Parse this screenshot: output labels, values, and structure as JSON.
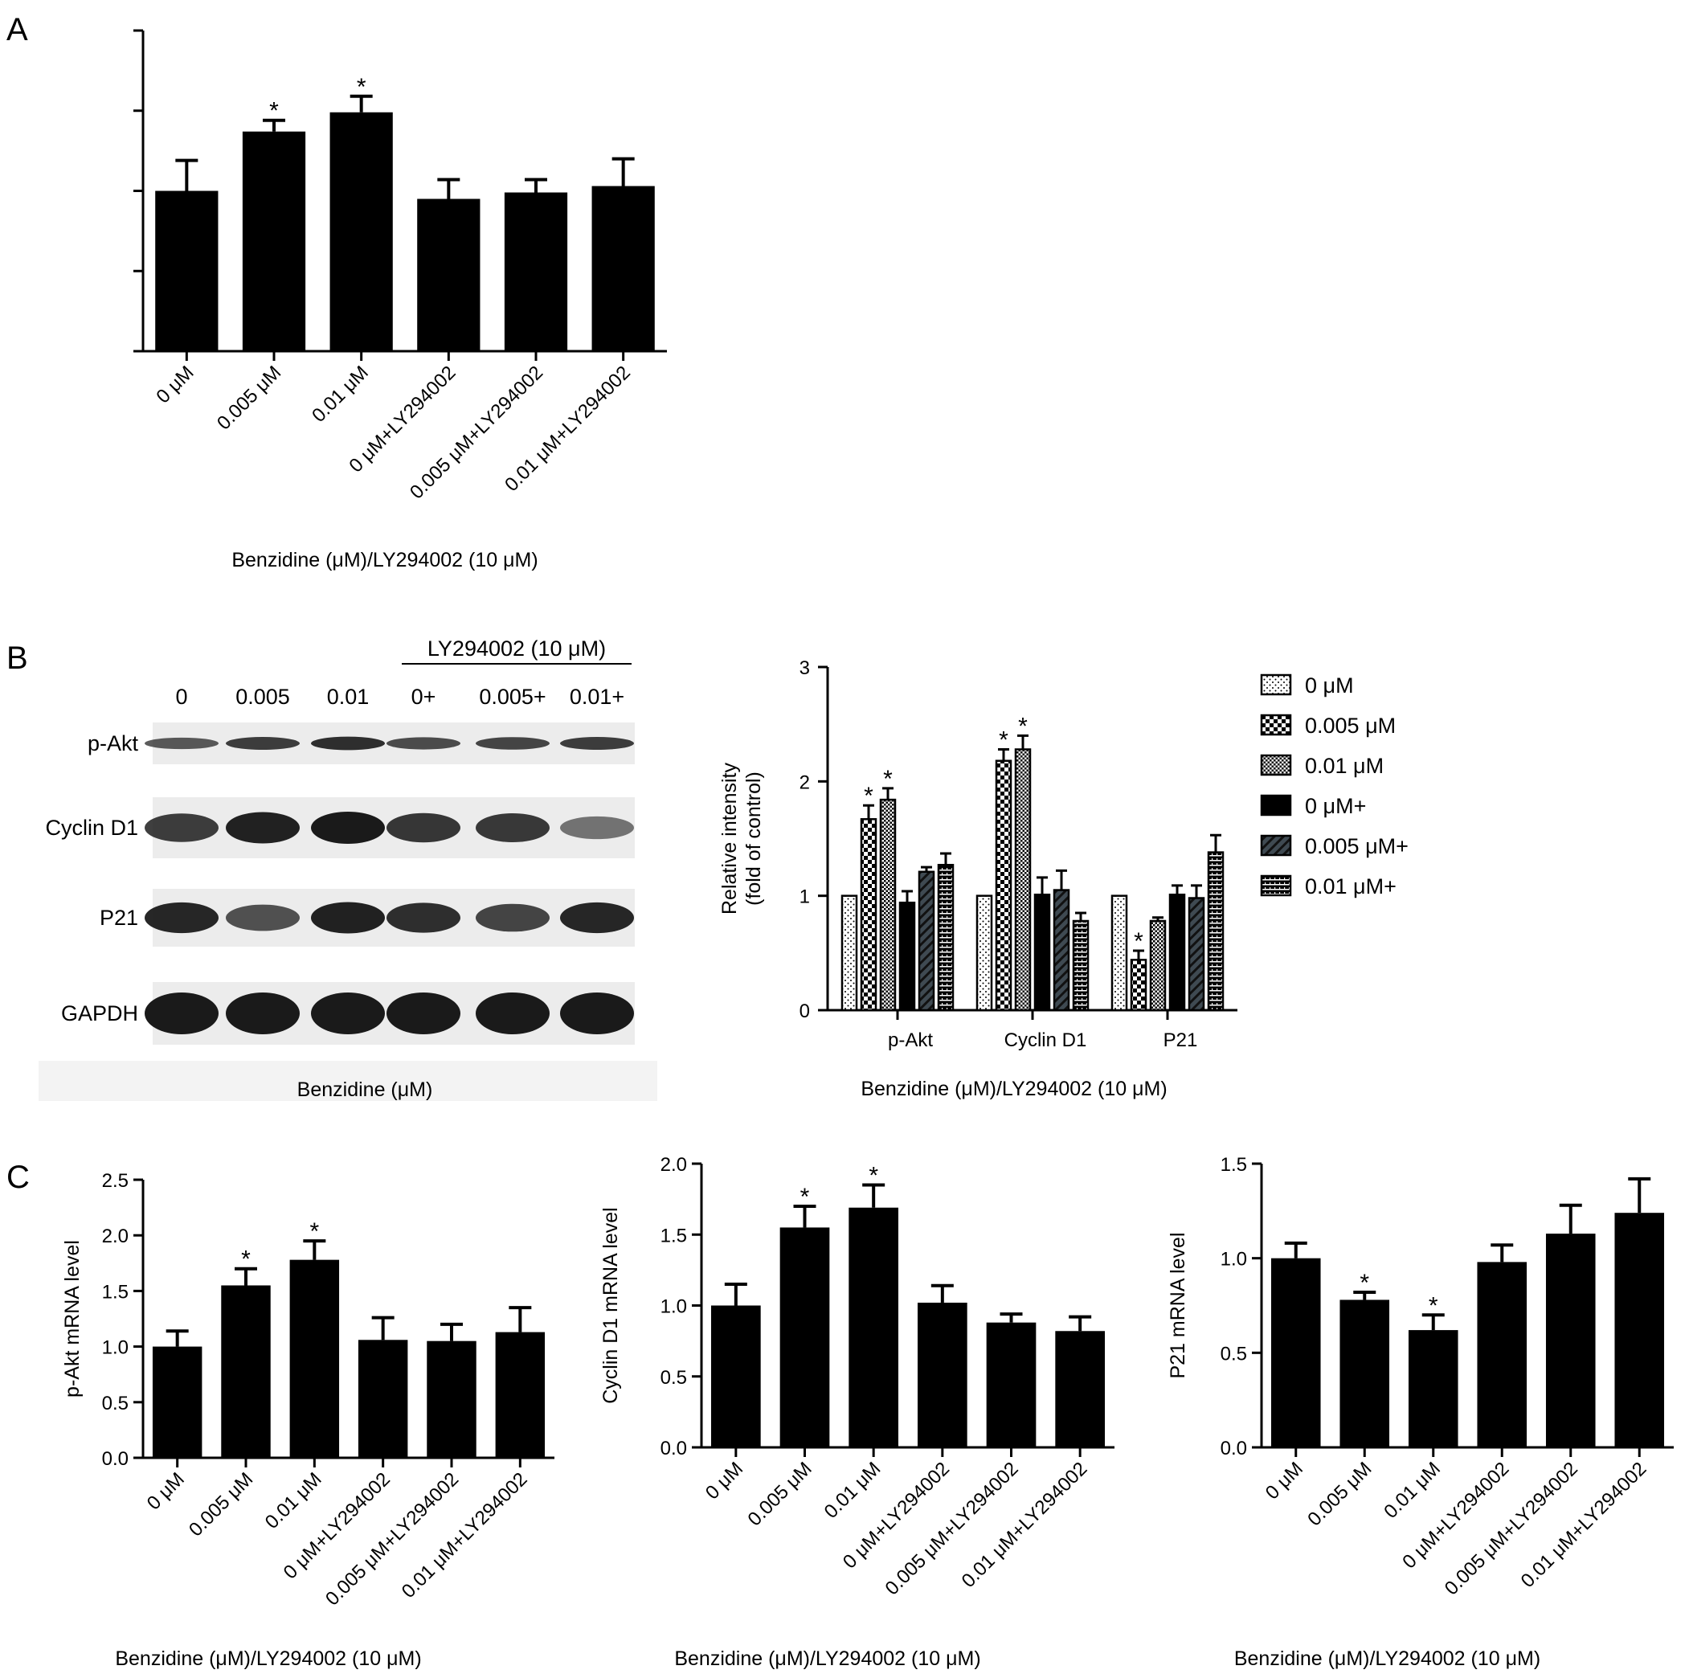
{
  "panels": {
    "A": {
      "letter": "A"
    },
    "B": {
      "letter": "B"
    },
    "C": {
      "letter": "C"
    }
  },
  "colors": {
    "bar": "#000000",
    "axis": "#000000",
    "blot_bg": "#ececec",
    "band": "#1a1a1a"
  },
  "blot": {
    "treatment_label": "LY294002 (10 μM)",
    "lanes": [
      "0",
      "0.005",
      "0.01",
      "0+",
      "0.005+",
      "0.01+"
    ],
    "rows": [
      {
        "label": "p-Akt",
        "intensity": [
          0.55,
          0.75,
          0.85,
          0.65,
          0.7,
          0.75
        ]
      },
      {
        "label": "Cyclin D1",
        "intensity": [
          0.75,
          0.95,
          1.0,
          0.8,
          0.78,
          0.35
        ]
      },
      {
        "label": "P21",
        "intensity": [
          0.9,
          0.6,
          0.95,
          0.85,
          0.7,
          0.9
        ]
      },
      {
        "label": "GAPDH",
        "intensity": [
          1.0,
          1.0,
          1.0,
          1.0,
          1.0,
          1.0
        ]
      }
    ],
    "xlabel": "Benzidine (μM)"
  },
  "chart_data": [
    {
      "id": "A",
      "type": "bar",
      "categories": [
        "0 μM",
        "0.005 μM",
        "0.01 μM",
        "0 μM+LY294002",
        "0.005 μM+LY294002",
        "0.01 μM+LY294002"
      ],
      "values": [
        1.0,
        1.37,
        1.49,
        0.95,
        0.99,
        1.03
      ],
      "errors": [
        0.19,
        0.07,
        0.1,
        0.12,
        0.08,
        0.17
      ],
      "significant": [
        false,
        true,
        true,
        false,
        false,
        false
      ],
      "xlabel": "Benzidine (μM)/LY294002 (10 μM)",
      "ylabel": "",
      "ylim": [
        0,
        2
      ],
      "yticks": [
        0,
        0.5,
        1.0,
        1.5,
        2.0
      ],
      "show_tick_labels": false,
      "grid": false
    },
    {
      "id": "B",
      "type": "bar",
      "categories": [
        "p-Akt",
        "Cyclin D1",
        "P21"
      ],
      "series": [
        {
          "name": "0 μM",
          "values": [
            1.0,
            1.0,
            1.0
          ],
          "errors": [
            0,
            0,
            0
          ],
          "significant": [
            false,
            false,
            false
          ],
          "pattern": "dots"
        },
        {
          "name": "0.005 μM",
          "values": [
            1.67,
            2.18,
            0.44
          ],
          "errors": [
            0.12,
            0.1,
            0.08
          ],
          "significant": [
            true,
            true,
            true
          ],
          "pattern": "checker"
        },
        {
          "name": "0.01 μM",
          "values": [
            1.84,
            2.28,
            0.78
          ],
          "errors": [
            0.1,
            0.12,
            0.03
          ],
          "significant": [
            true,
            true,
            false
          ],
          "pattern": "grid"
        },
        {
          "name": "0 μM+",
          "values": [
            0.94,
            1.01,
            1.01
          ],
          "errors": [
            0.1,
            0.15,
            0.08
          ],
          "significant": [
            false,
            false,
            false
          ],
          "pattern": "solid"
        },
        {
          "name": "0.005 μM+",
          "values": [
            1.21,
            1.05,
            0.98
          ],
          "errors": [
            0.04,
            0.17,
            0.11
          ],
          "significant": [
            false,
            false,
            false
          ],
          "pattern": "diagonal"
        },
        {
          "name": "0.01 μM+",
          "values": [
            1.27,
            0.78,
            1.38
          ],
          "errors": [
            0.1,
            0.07,
            0.15
          ],
          "significant": [
            false,
            false,
            false
          ],
          "pattern": "hatch"
        }
      ],
      "xlabel": "Benzidine (μM)/LY294002 (10 μM)",
      "ylabel": "Relative intensity\n(fold of control)",
      "ylim": [
        0,
        3
      ],
      "yticks": [
        0,
        1,
        2,
        3
      ],
      "legend": "right",
      "grid": false
    },
    {
      "id": "C1",
      "type": "bar",
      "categories": [
        "0 μM",
        "0.005 μM",
        "0.01 μM",
        "0 μM+LY294002",
        "0.005 μM+LY294002",
        "0.01 μM+LY294002"
      ],
      "values": [
        1.0,
        1.55,
        1.78,
        1.06,
        1.05,
        1.13
      ],
      "errors": [
        0.14,
        0.15,
        0.17,
        0.2,
        0.15,
        0.22
      ],
      "significant": [
        false,
        true,
        true,
        false,
        false,
        false
      ],
      "xlabel": "Benzidine (μM)/LY294002 (10 μM)",
      "ylabel": "p-Akt mRNA level",
      "ylim": [
        0,
        2.5
      ],
      "yticks": [
        0.0,
        0.5,
        1.0,
        1.5,
        2.0,
        2.5
      ],
      "grid": false
    },
    {
      "id": "C2",
      "type": "bar",
      "categories": [
        "0 μM",
        "0.005 μM",
        "0.01 μM",
        "0 μM+LY294002",
        "0.005 μM+LY294002",
        "0.01 μM+LY294002"
      ],
      "values": [
        1.0,
        1.55,
        1.69,
        1.02,
        0.88,
        0.82
      ],
      "errors": [
        0.15,
        0.15,
        0.16,
        0.12,
        0.06,
        0.1
      ],
      "significant": [
        false,
        true,
        true,
        false,
        false,
        false
      ],
      "xlabel": "Benzidine (μM)/LY294002 (10 μM)",
      "ylabel": "Cyclin D1 mRNA level",
      "ylim": [
        0,
        2.0
      ],
      "yticks": [
        0.0,
        0.5,
        1.0,
        1.5,
        2.0
      ],
      "grid": false
    },
    {
      "id": "C3",
      "type": "bar",
      "categories": [
        "0 μM",
        "0.005 μM",
        "0.01 μM",
        "0 μM+LY294002",
        "0.005 μM+LY294002",
        "0.01 μM+LY294002"
      ],
      "values": [
        1.0,
        0.78,
        0.62,
        0.98,
        1.13,
        1.24
      ],
      "errors": [
        0.08,
        0.04,
        0.08,
        0.09,
        0.15,
        0.18
      ],
      "significant": [
        false,
        true,
        true,
        false,
        false,
        false
      ],
      "xlabel": "Benzidine (μM)/LY294002 (10 μM)",
      "ylabel": "P21 mRNA level",
      "ylim": [
        0,
        1.5
      ],
      "yticks": [
        0.0,
        0.5,
        1.0,
        1.5
      ],
      "grid": false
    }
  ]
}
